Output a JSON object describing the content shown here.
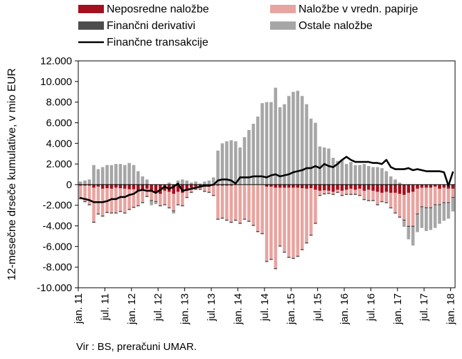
{
  "chart_data": {
    "type": "bar",
    "stacked": true,
    "title": "",
    "xlabel": "",
    "ylabel": "12-mesečne drseče kumulative, v mio EUR",
    "source": "Vir : BS, preračuni UMAR.",
    "ylim": [
      -10000,
      12000
    ],
    "y_ticks": [
      12000,
      10000,
      8000,
      6000,
      4000,
      2000,
      0,
      -2000,
      -4000,
      -6000,
      -8000,
      -10000
    ],
    "y_tick_labels": [
      "12.000",
      "10.000",
      "8.000",
      "6.000",
      "4.000",
      "2.000",
      "0",
      "-2.000",
      "-4.000",
      "-6.000",
      "-8.000",
      "-10.000"
    ],
    "x_tick_labels": [
      "jan. 11",
      "jul. 11",
      "jan. 12",
      "jul. 12",
      "jan. 13",
      "jul. 13",
      "jan. 14",
      "jul. 14",
      "jan. 15",
      "jul. 15",
      "jan. 16",
      "jul. 16",
      "jan. 17",
      "jul. 17",
      "jan. 18"
    ],
    "x_tick_every": 6,
    "grid": false,
    "legend_position": "top",
    "months_count": 85,
    "series": [
      {
        "name": "Neposredne naložbe",
        "color": "#a5101e",
        "kind": "bar",
        "values": [
          -100,
          -100,
          -100,
          -300,
          -200,
          -400,
          -350,
          -400,
          -300,
          -350,
          -400,
          -450,
          -450,
          -600,
          -500,
          -400,
          -600,
          -700,
          -900,
          -600,
          -700,
          -900,
          -700,
          -800,
          -600,
          -300,
          -200,
          -300,
          -200,
          -200,
          -100,
          -100,
          -100,
          -100,
          -100,
          0,
          0,
          0,
          0,
          0,
          0,
          0,
          -200,
          -200,
          -300,
          -300,
          -300,
          -300,
          -300,
          -300,
          -350,
          -400,
          -350,
          -500,
          -600,
          -550,
          -600,
          -700,
          -500,
          -600,
          -500,
          -400,
          -500,
          -400,
          -600,
          -500,
          -600,
          -700,
          -800,
          -700,
          -800,
          -800,
          -900,
          -1000,
          -800,
          -700,
          -400,
          -300,
          -300,
          -300,
          -200,
          -400,
          -300,
          -400,
          -400
        ]
      },
      {
        "name": "Naložbe v vredn. papirje",
        "color": "#e8a4a0",
        "kind": "bar",
        "values": [
          -1200,
          -1500,
          -1800,
          -3300,
          -2600,
          -2600,
          -2300,
          -2300,
          -2400,
          -2200,
          -2300,
          -1900,
          -1700,
          -1400,
          -1200,
          -700,
          -900,
          -900,
          -1100,
          -1300,
          -1500,
          -1600,
          -1200,
          -1200,
          -600,
          -400,
          -200,
          -100,
          -400,
          -500,
          -900,
          -3200,
          -3100,
          -3300,
          -3500,
          -3400,
          -3700,
          -3300,
          -3500,
          -3900,
          -4500,
          -4700,
          -7200,
          -7000,
          -7800,
          -5600,
          -6200,
          -6700,
          -6800,
          -6600,
          -5900,
          -5200,
          -4500,
          -3200,
          -400,
          -300,
          -200,
          -200,
          -200,
          -400,
          -400,
          -500,
          -400,
          -600,
          -800,
          -1000,
          -900,
          -1200,
          -800,
          -1000,
          -1400,
          -1900,
          -2200,
          -2400,
          -3200,
          -3300,
          -2400,
          -1800,
          -1900,
          -1900,
          -1700,
          -1500,
          -1400,
          -1300,
          -800
        ]
      },
      {
        "name": "Finančni derivativi",
        "color": "#4d4d4d",
        "kind": "bar",
        "values": [
          -100,
          -100,
          -100,
          -100,
          -100,
          -100,
          -100,
          -100,
          -100,
          -100,
          -100,
          -100,
          -100,
          -100,
          -100,
          -100,
          -100,
          -100,
          -100,
          -100,
          -100,
          -100,
          -100,
          -100,
          -100,
          -100,
          -100,
          -100,
          -100,
          -100,
          -100,
          -100,
          -100,
          -100,
          -100,
          -100,
          -100,
          -100,
          -100,
          -100,
          -100,
          -100,
          -100,
          -100,
          -100,
          -100,
          -100,
          -100,
          -100,
          -100,
          -100,
          -100,
          -100,
          -100,
          -100,
          -100,
          -100,
          -100,
          -100,
          -100,
          -100,
          -100,
          -100,
          -100,
          -100,
          -100,
          -100,
          -100,
          -100,
          -100,
          -100,
          -100,
          -100,
          -100,
          -100,
          -100,
          -100,
          -100,
          -100,
          -100,
          -100,
          -100,
          -100,
          -100,
          -100
        ]
      },
      {
        "name": "Ostale naložbe",
        "color": "#a6a6a6",
        "kind": "bar",
        "values": [
          300,
          400,
          500,
          1900,
          1500,
          1700,
          1900,
          1900,
          2000,
          2000,
          1900,
          2100,
          1900,
          1300,
          800,
          500,
          -400,
          -200,
          0,
          0,
          200,
          -200,
          400,
          500,
          400,
          200,
          300,
          100,
          300,
          400,
          700,
          3300,
          4000,
          4200,
          4300,
          4200,
          3600,
          4600,
          5300,
          5900,
          6600,
          7900,
          8000,
          8000,
          9400,
          7500,
          7800,
          8600,
          9000,
          9100,
          8600,
          7800,
          6400,
          6000,
          3700,
          3600,
          3500,
          2600,
          2300,
          2400,
          2000,
          2200,
          1900,
          1900,
          2000,
          1800,
          1700,
          1700,
          1600,
          1300,
          800,
          500,
          200,
          -600,
          -1200,
          -1800,
          -1700,
          -2000,
          -2200,
          -2100,
          -2200,
          -1800,
          -1700,
          -1500,
          -1300
        ]
      },
      {
        "name": "Finančne transakcije",
        "color": "#000000",
        "kind": "line",
        "values": [
          -1300,
          -1400,
          -1500,
          -1700,
          -1700,
          -1700,
          -1600,
          -1400,
          -1400,
          -1200,
          -1200,
          -1000,
          -900,
          -600,
          -500,
          -600,
          -600,
          -800,
          -500,
          -200,
          -400,
          -200,
          100,
          -600,
          -500,
          -400,
          -300,
          -200,
          -100,
          -100,
          0,
          400,
          500,
          500,
          400,
          100,
          700,
          700,
          700,
          800,
          800,
          800,
          700,
          900,
          1000,
          800,
          900,
          1000,
          1200,
          1300,
          1400,
          1600,
          1600,
          1800,
          1600,
          2000,
          1800,
          1700,
          2000,
          2400,
          2700,
          2400,
          2200,
          2200,
          2200,
          2200,
          2100,
          2100,
          2000,
          2400,
          1700,
          1500,
          1500,
          1500,
          1600,
          1400,
          1500,
          1400,
          1300,
          1300,
          1300,
          1300,
          1200,
          -100,
          1200
        ]
      }
    ]
  }
}
